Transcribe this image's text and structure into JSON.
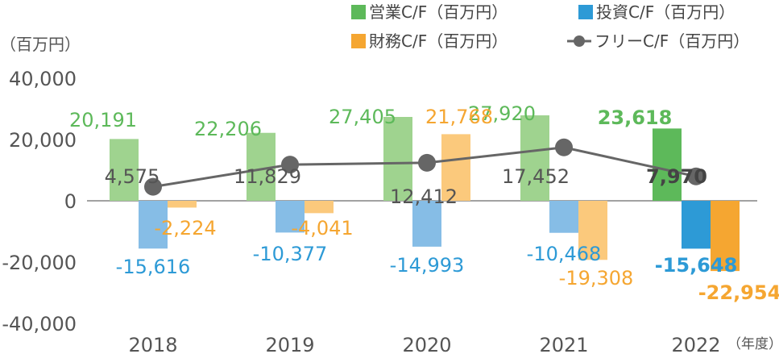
{
  "chart_data": {
    "type": "bar",
    "y_unit_label": "（百万円）",
    "x_unit_label": "（年度）",
    "categories": [
      "2018",
      "2019",
      "2020",
      "2021",
      "2022"
    ],
    "ylim": [
      -40000,
      40000
    ],
    "yticks": [
      40000,
      20000,
      0,
      -20000,
      -40000
    ],
    "ytick_labels": [
      "40,000",
      "20,000",
      "0",
      "-20,000",
      "-40,000"
    ],
    "grid": false,
    "legend_position": "top-right",
    "highlight_category": "2022",
    "series": [
      {
        "name": "営業C/F（百万円）",
        "kind": "bar",
        "color": "#9fd38f",
        "highlight_color": "#5db95a",
        "values": [
          20191,
          22206,
          27405,
          27920,
          23618
        ],
        "labels": [
          "20,191",
          "22,206",
          "27,405",
          "27,920",
          "23,618"
        ]
      },
      {
        "name": "投資C/F（百万円）",
        "kind": "bar",
        "color": "#86bde6",
        "highlight_color": "#2d9ad6",
        "values": [
          -15616,
          -10377,
          -14993,
          -10468,
          -15648
        ],
        "labels": [
          "-15,616",
          "-10,377",
          "-14,993",
          "-10,468",
          "-15,648"
        ]
      },
      {
        "name": "財務C/F（百万円）",
        "kind": "bar",
        "color": "#fbc97c",
        "highlight_color": "#f5a631",
        "values": [
          -2224,
          -4041,
          21768,
          -19308,
          -22954
        ],
        "labels": [
          "-2,224",
          "-4,041",
          "21,768",
          "-19,308",
          "-22,954"
        ]
      },
      {
        "name": "フリーC/F（百万円）",
        "kind": "line",
        "color": "#666666",
        "values": [
          4575,
          11829,
          12412,
          17452,
          7970
        ],
        "labels": [
          "4,575",
          "11,829",
          "12,412",
          "17,452",
          "7,970"
        ]
      }
    ]
  }
}
